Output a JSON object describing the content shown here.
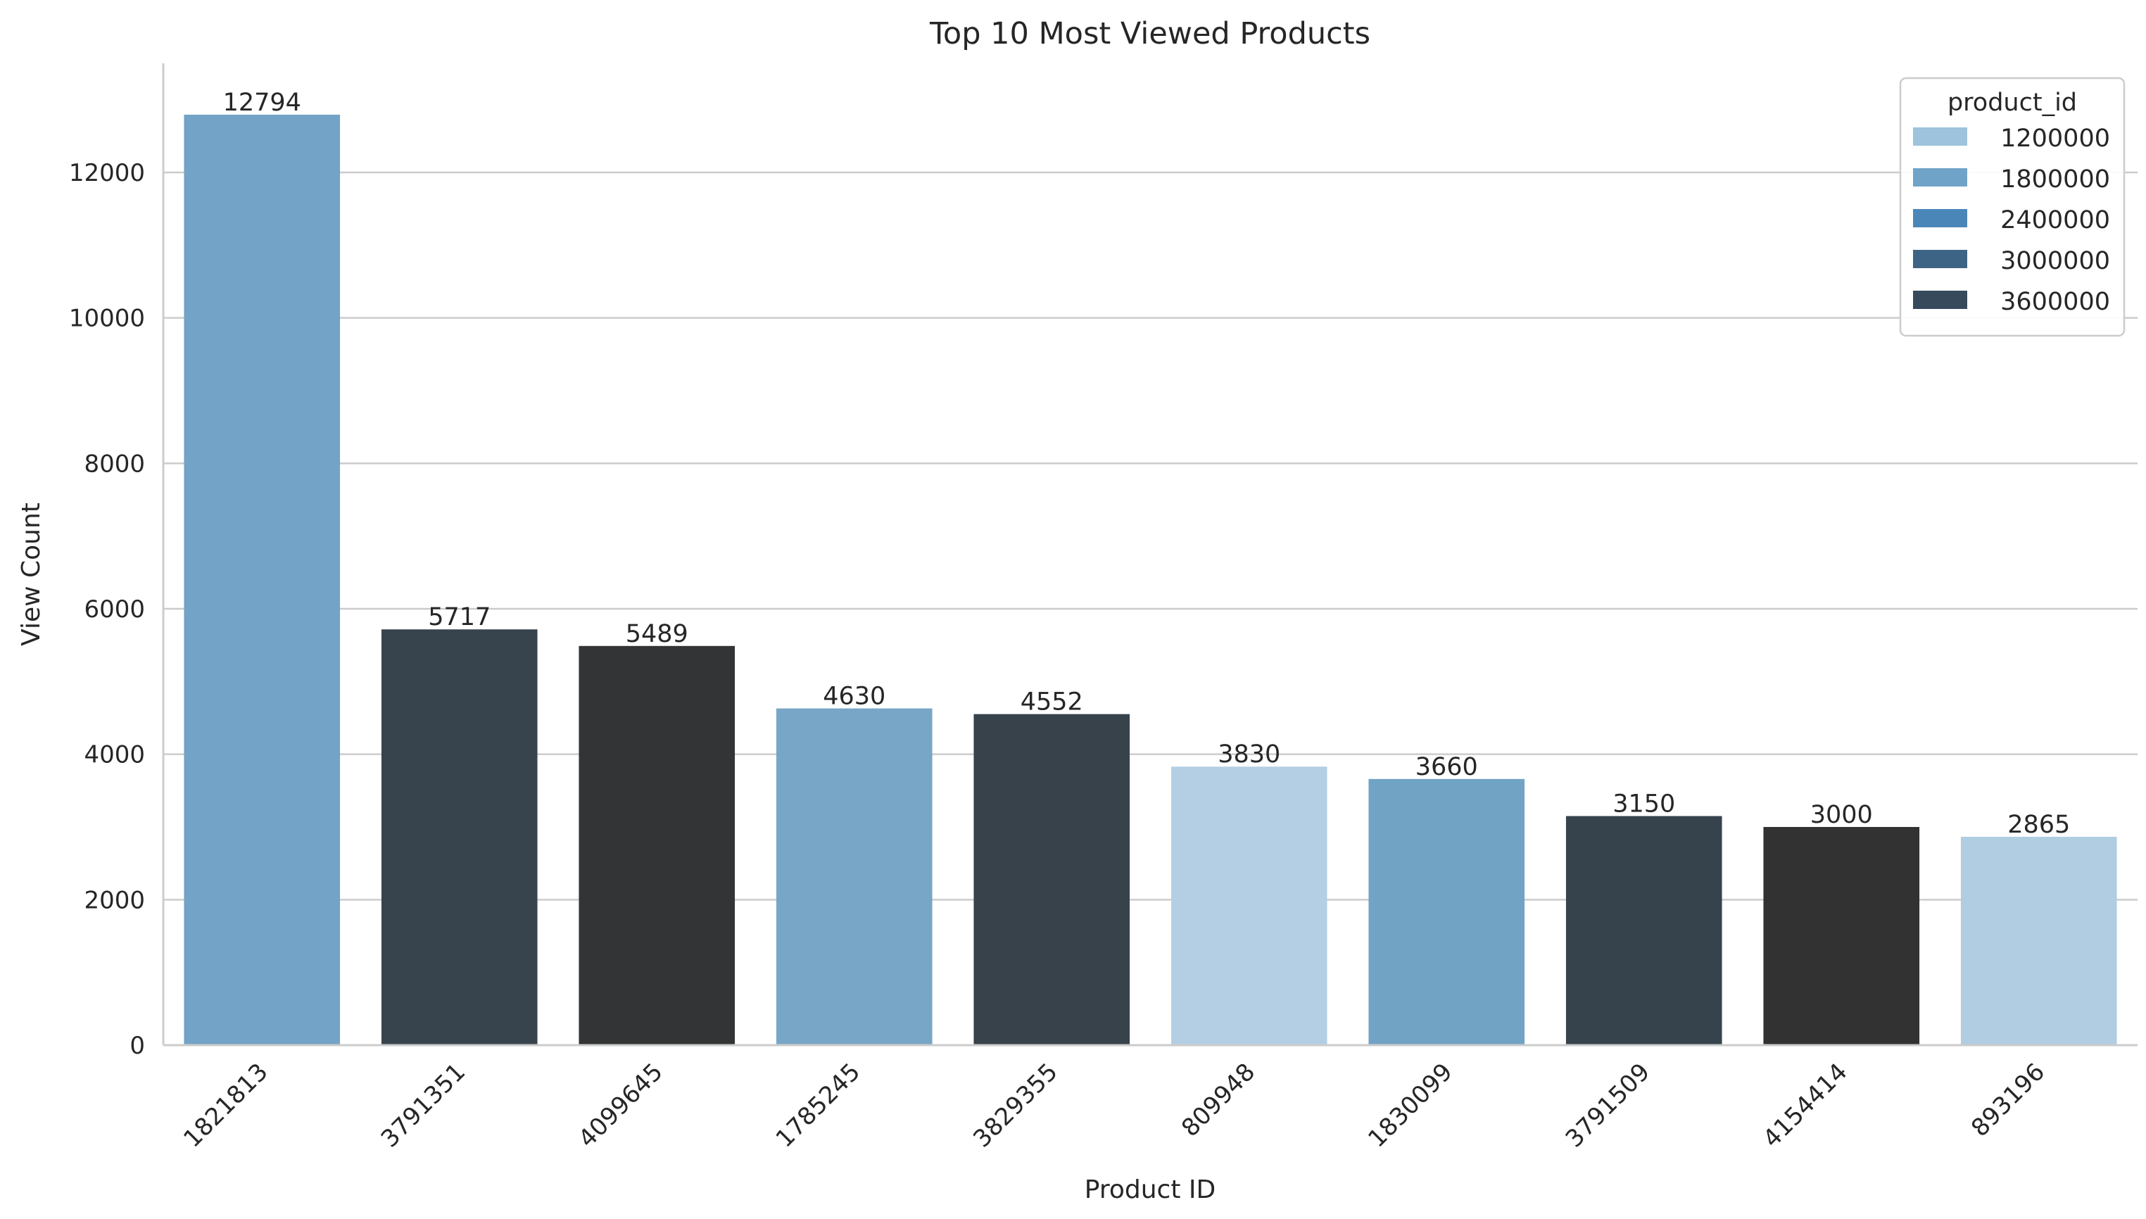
{
  "chart_data": {
    "type": "bar",
    "title": "Top 10 Most Viewed Products",
    "xlabel": "Product ID",
    "ylabel": "View Count",
    "ylim": [
      0,
      13500
    ],
    "yticks": [
      0,
      2000,
      4000,
      6000,
      8000,
      10000,
      12000
    ],
    "grid": "horizontal",
    "legend_position": "top-right",
    "categories": [
      "1821813",
      "3791351",
      "4099645",
      "1785245",
      "3829355",
      "809948",
      "1830099",
      "3791509",
      "4154414",
      "893196"
    ],
    "values": [
      12794,
      5717,
      5489,
      4630,
      4552,
      3830,
      3660,
      3150,
      3000,
      2865
    ],
    "data_labels": [
      "12794",
      "5717",
      "5489",
      "4630",
      "4552",
      "3830",
      "3660",
      "3150",
      "3000",
      "2865"
    ],
    "bar_colors": [
      "#73a3c6",
      "#38444d",
      "#333435",
      "#78a6c6",
      "#38424b",
      "#b4cfe3",
      "#71a3c5",
      "#36434d",
      "#323232",
      "#b0cde2"
    ],
    "legend": {
      "title": "product_id",
      "entries": [
        {
          "label": "1200000",
          "color": "#9dc3dd"
        },
        {
          "label": "1800000",
          "color": "#70a3c8"
        },
        {
          "label": "2400000",
          "color": "#4a87b8"
        },
        {
          "label": "3000000",
          "color": "#3d6484"
        },
        {
          "label": "3600000",
          "color": "#364a5c"
        }
      ]
    }
  }
}
